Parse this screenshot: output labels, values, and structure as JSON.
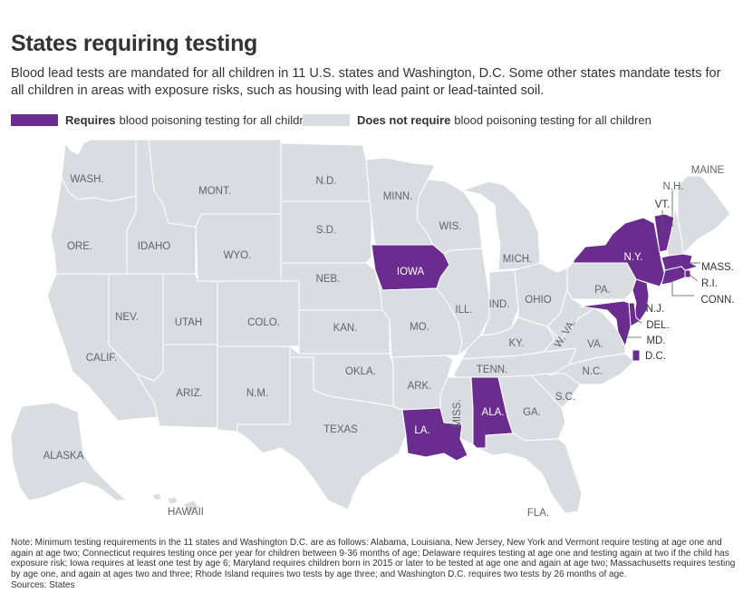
{
  "title": "States requiring testing",
  "subtitle": "Blood lead tests are mandated for all children in 11 U.S. states and Washington, D.C. Some other states mandate tests for all children in areas with exposure risks, such as housing with lead paint or lead-tainted soil.",
  "legend": {
    "requires_bold": "Requires",
    "requires_text": "blood poisoning testing for all children",
    "not_bold": "Does not require",
    "not_text": "blood poisoning testing for all children"
  },
  "colors": {
    "requires": "#6a2c8e",
    "not": "#d9dde1",
    "border": "#ffffff",
    "label": "#606468",
    "label_on_purple": "#ffffff"
  },
  "states": [
    {
      "code": "WA",
      "label": "WASH.",
      "requires": false
    },
    {
      "code": "OR",
      "label": "ORE.",
      "requires": false
    },
    {
      "code": "CA",
      "label": "CALIF.",
      "requires": false
    },
    {
      "code": "ID",
      "label": "IDAHO",
      "requires": false
    },
    {
      "code": "NV",
      "label": "NEV.",
      "requires": false
    },
    {
      "code": "MT",
      "label": "MONT.",
      "requires": false
    },
    {
      "code": "WY",
      "label": "WYO.",
      "requires": false
    },
    {
      "code": "UT",
      "label": "UTAH",
      "requires": false
    },
    {
      "code": "CO",
      "label": "COLO.",
      "requires": false
    },
    {
      "code": "AZ",
      "label": "ARIZ.",
      "requires": false
    },
    {
      "code": "NM",
      "label": "N.M.",
      "requires": false
    },
    {
      "code": "ND",
      "label": "N.D.",
      "requires": false
    },
    {
      "code": "SD",
      "label": "S.D.",
      "requires": false
    },
    {
      "code": "NE",
      "label": "NEB.",
      "requires": false
    },
    {
      "code": "KS",
      "label": "KAN.",
      "requires": false
    },
    {
      "code": "OK",
      "label": "OKLA.",
      "requires": false
    },
    {
      "code": "TX",
      "label": "TEXAS",
      "requires": false
    },
    {
      "code": "MN",
      "label": "MINN.",
      "requires": false
    },
    {
      "code": "IA",
      "label": "IOWA",
      "requires": true
    },
    {
      "code": "MO",
      "label": "MO.",
      "requires": false
    },
    {
      "code": "AR",
      "label": "ARK.",
      "requires": false
    },
    {
      "code": "LA",
      "label": "LA.",
      "requires": true
    },
    {
      "code": "WI",
      "label": "WIS.",
      "requires": false
    },
    {
      "code": "IL",
      "label": "ILL.",
      "requires": false
    },
    {
      "code": "MI",
      "label": "MICH.",
      "requires": false
    },
    {
      "code": "IN",
      "label": "IND.",
      "requires": false
    },
    {
      "code": "OH",
      "label": "OHIO",
      "requires": false
    },
    {
      "code": "KY",
      "label": "KY.",
      "requires": false
    },
    {
      "code": "TN",
      "label": "TENN.",
      "requires": false
    },
    {
      "code": "MS",
      "label": "MISS.",
      "requires": false
    },
    {
      "code": "AL",
      "label": "ALA.",
      "requires": true
    },
    {
      "code": "GA",
      "label": "GA.",
      "requires": false
    },
    {
      "code": "FL",
      "label": "FLA.",
      "requires": false
    },
    {
      "code": "SC",
      "label": "S.C.",
      "requires": false
    },
    {
      "code": "NC",
      "label": "N.C.",
      "requires": false
    },
    {
      "code": "VA",
      "label": "VA.",
      "requires": false
    },
    {
      "code": "WV",
      "label": "W. VA.",
      "requires": false
    },
    {
      "code": "PA",
      "label": "PA.",
      "requires": false
    },
    {
      "code": "NY",
      "label": "N.Y.",
      "requires": true
    },
    {
      "code": "VT",
      "label": "VT.",
      "requires": true
    },
    {
      "code": "NH",
      "label": "N.H.",
      "requires": false
    },
    {
      "code": "ME",
      "label": "MAINE",
      "requires": false
    },
    {
      "code": "MA",
      "label": "MASS.",
      "requires": true
    },
    {
      "code": "RI",
      "label": "R.I.",
      "requires": true
    },
    {
      "code": "CT",
      "label": "CONN.",
      "requires": true
    },
    {
      "code": "NJ",
      "label": "N.J.",
      "requires": true
    },
    {
      "code": "DE",
      "label": "DEL.",
      "requires": true
    },
    {
      "code": "MD",
      "label": "MD.",
      "requires": true
    },
    {
      "code": "DC",
      "label": "D.C.",
      "requires": true
    },
    {
      "code": "AK",
      "label": "ALASKA",
      "requires": false
    },
    {
      "code": "HI",
      "label": "HAWAII",
      "requires": false
    }
  ],
  "note": "Note: Minimum testing requirements in the 11 states and Washington D.C. are as follows: Alabama, Louisiana, New Jersey, New York and Vermont require testing at age one and again at age two; Connecticut requires testing once per year for children between 9-36 months of age; Delaware requires testing at age one and testing again at two if the child has exposure risk; Iowa requires at least one test by age 6; Maryland requires children born in 2015 or later to be tested at age one and again at age two; Massachusetts requires testing by age one, and again at ages two and three; Rhode Island requires two tests by age three; and Washington D.C. requires two tests by 26 months of age.",
  "sources": "Sources: States"
}
